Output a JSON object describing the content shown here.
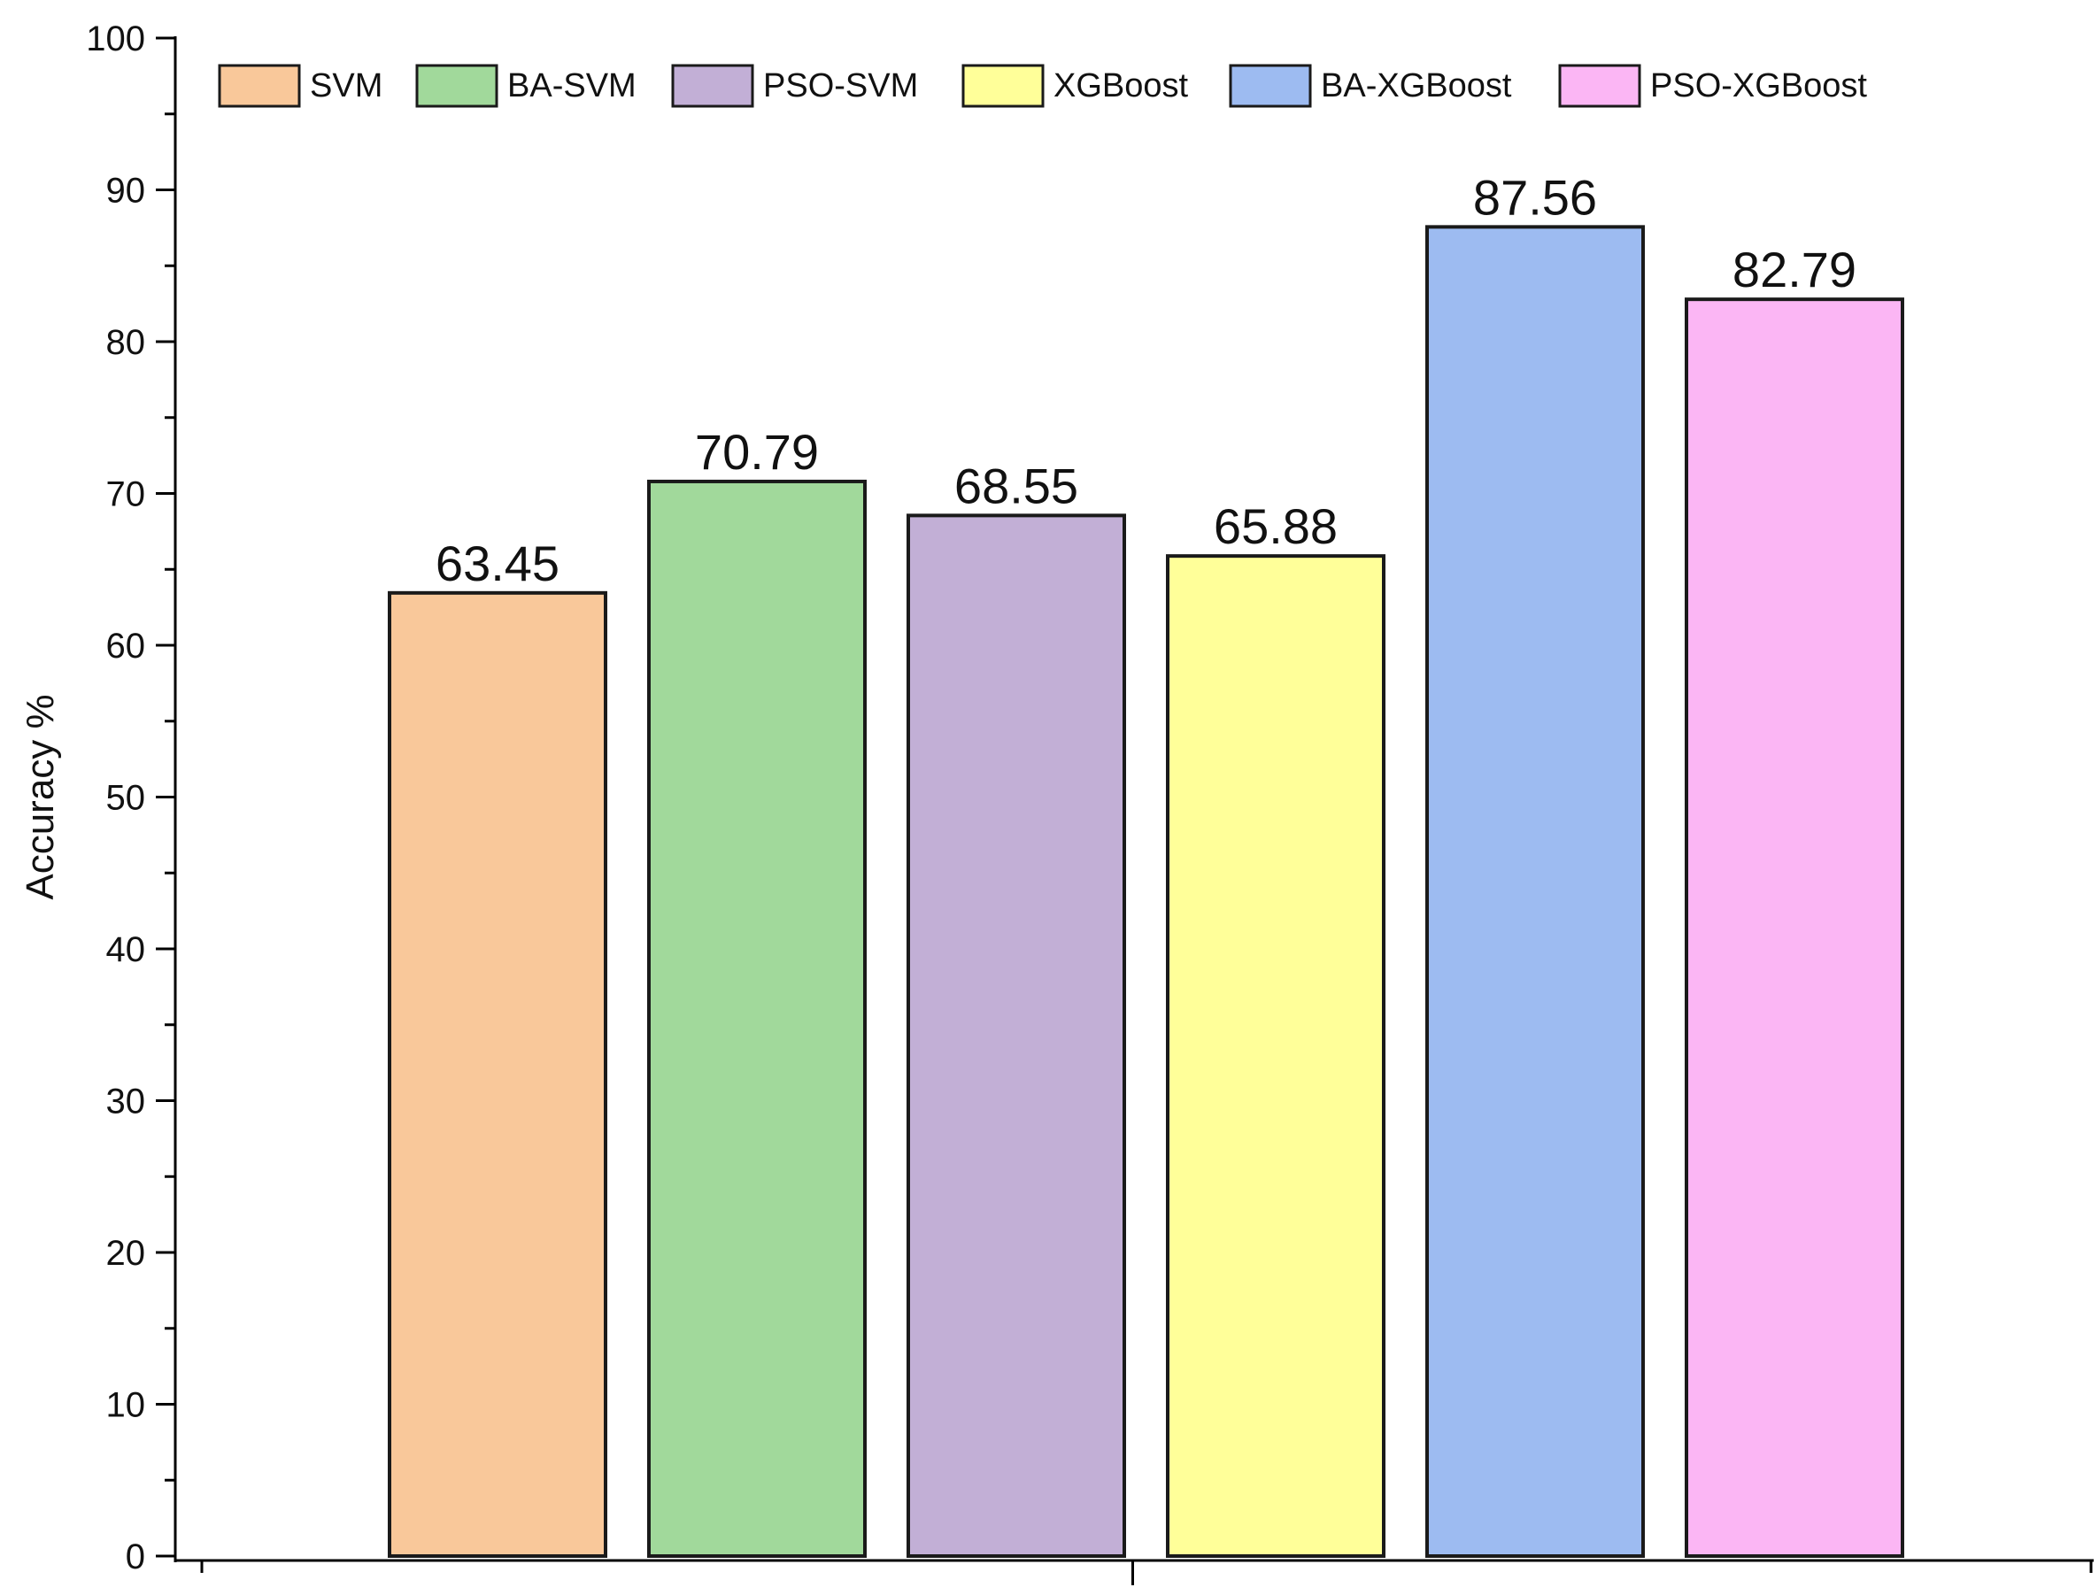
{
  "chart_data": {
    "type": "bar",
    "title": "",
    "xlabel": "",
    "ylabel": "Accuracy %",
    "ylim": [
      0,
      100
    ],
    "yticks": [
      0,
      10,
      20,
      30,
      40,
      50,
      60,
      70,
      80,
      90,
      100
    ],
    "categories": [
      "SVM",
      "BA-SVM",
      "PSO-SVM",
      "XGBoost",
      "BA-XGBoost",
      "PSO-XGBoost"
    ],
    "values": [
      63.45,
      70.79,
      68.55,
      65.88,
      87.56,
      82.79
    ],
    "value_labels": [
      "63.45",
      "70.79",
      "68.55",
      "65.88",
      "87.56",
      "82.79"
    ],
    "colors": [
      "#F9C89A",
      "#A1D99B",
      "#C2AFD6",
      "#FFFF99",
      "#9DBBF1",
      "#FBB6F4"
    ],
    "legend": {
      "placement": "top-left",
      "entries": [
        "SVM",
        "BA-SVM",
        "PSO-SVM",
        "XGBoost",
        "BA-XGBoost",
        "PSO-XGBoost"
      ]
    },
    "grid": false
  }
}
